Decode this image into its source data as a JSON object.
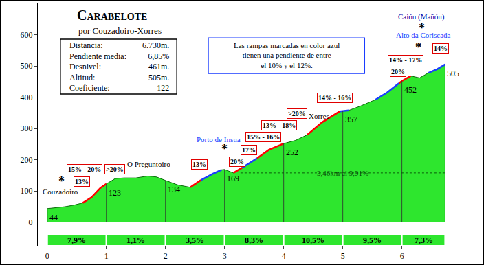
{
  "chart_data": {
    "type": "area",
    "title": "Carabelote",
    "subtitle": "por Couzadoiro-Xorres",
    "color": "#2ee62e",
    "x": [
      0,
      0.15,
      0.3,
      0.45,
      0.6,
      0.75,
      0.9,
      1.0,
      1.15,
      1.3,
      1.5,
      1.7,
      1.85,
      2.0,
      2.2,
      2.42,
      2.6,
      2.8,
      2.95,
      3.0,
      3.15,
      3.3,
      3.55,
      3.75,
      4.0,
      4.2,
      4.4,
      4.65,
      4.95,
      5.1,
      5.3,
      5.55,
      5.75,
      5.95,
      6.0,
      6.15,
      6.3,
      6.45,
      6.6,
      6.73
    ],
    "values": [
      44,
      47,
      50,
      55,
      62,
      80,
      110,
      123,
      140,
      142,
      142,
      148,
      145,
      134,
      120,
      112,
      135,
      155,
      168,
      169,
      158,
      175,
      205,
      232,
      252,
      262,
      280,
      320,
      355,
      358,
      372,
      392,
      415,
      445,
      452,
      468,
      462,
      478,
      490,
      505
    ],
    "xlim": [
      -0.16,
      7.33
    ],
    "ylim": [
      -75,
      700
    ],
    "xticks": [
      0,
      1,
      2,
      3,
      4,
      5,
      6
    ],
    "yticks": [
      0,
      100,
      200,
      300,
      400,
      500,
      600
    ],
    "grid": false,
    "highlights": [
      {
        "color": "#ff0000",
        "ranges": [
          [
            0.6,
            1.0
          ],
          [
            2.42,
            2.6
          ],
          [
            3.15,
            3.3
          ],
          [
            3.55,
            4.0
          ],
          [
            4.4,
            4.95
          ],
          [
            5.95,
            6.15
          ]
        ]
      },
      {
        "color": "#1a3cff",
        "ranges": [
          [
            2.6,
            2.95
          ],
          [
            3.3,
            3.55
          ],
          [
            4.95,
            5.1
          ],
          [
            5.55,
            5.95
          ],
          [
            6.45,
            6.73
          ]
        ]
      }
    ],
    "km_labels": [
      {
        "x": 0,
        "alt": 44
      },
      {
        "x": 1,
        "alt": 123
      },
      {
        "x": 2,
        "alt": 134
      },
      {
        "x": 3,
        "alt": 169
      },
      {
        "x": 4,
        "alt": 252
      },
      {
        "x": 5,
        "alt": 357
      },
      {
        "x": 6,
        "alt": 452
      },
      {
        "x": 6.73,
        "alt": 505
      }
    ],
    "segments": [
      {
        "from": 0,
        "to": 1,
        "label": "7,9%"
      },
      {
        "from": 1,
        "to": 2,
        "label": "1,1%"
      },
      {
        "from": 2,
        "to": 3,
        "label": "3,5%"
      },
      {
        "from": 3,
        "to": 4,
        "label": "8,3%"
      },
      {
        "from": 4,
        "to": 5,
        "label": "10,5%"
      },
      {
        "from": 5,
        "to": 6,
        "label": "9,5%"
      },
      {
        "from": 6,
        "to": 6.73,
        "label": "7,3%"
      }
    ],
    "ramp_labels": [
      {
        "text": "15% - 20%",
        "x": 0.63,
        "y": 169
      },
      {
        "text": "13%",
        "x": 0.58,
        "y": 130
      },
      {
        "text": ">20%",
        "x": 1.14,
        "y": 169
      },
      {
        "text": "13%",
        "x": 2.57,
        "y": 185
      },
      {
        "text": "20%",
        "x": 3.21,
        "y": 193
      },
      {
        "text": "17%",
        "x": 3.41,
        "y": 231
      },
      {
        "text": "15% - 16%",
        "x": 3.66,
        "y": 272
      },
      {
        "text": "13% - 18%",
        "x": 3.92,
        "y": 310
      },
      {
        "text": ">20%",
        "x": 4.22,
        "y": 347
      },
      {
        "text": "14% - 16%",
        "x": 4.86,
        "y": 398
      },
      {
        "text": "20%",
        "x": 5.94,
        "y": 481
      },
      {
        "text": "14% - 17%",
        "x": 6.06,
        "y": 519
      },
      {
        "text": "14%",
        "x": 6.66,
        "y": 556
      }
    ],
    "places": [
      {
        "text": "Couzadoiro",
        "x": 0.22,
        "y": 99,
        "color": "#000000"
      },
      {
        "text": "O Preguntoiro",
        "x": 1.72,
        "y": 187,
        "color": "#000000"
      },
      {
        "text": "Porto de Insua",
        "x": 2.9,
        "y": 266,
        "color": "#1a3cff"
      },
      {
        "text": "Xorres",
        "x": 4.6,
        "y": 341,
        "color": "#000000"
      },
      {
        "text": "Alto da Coriscada",
        "x": 6.37,
        "y": 598,
        "color": "#1a3cff"
      },
      {
        "text": "Caión (Mañón)",
        "x": 6.33,
        "y": 657,
        "color": "#0000aa"
      }
    ],
    "asterisks": [
      {
        "text": "*",
        "x": 0.24,
        "y": 132
      },
      {
        "text": "*",
        "x": 3.0,
        "y": 235
      },
      {
        "text": "*",
        "x": 6.28,
        "y": 560
      },
      {
        "text": "*",
        "x": 6.33,
        "y": 620
      }
    ],
    "span": {
      "text": "3,46km al 9,91%",
      "from": 3.27,
      "to": 6.73,
      "y": 158
    },
    "info": [
      {
        "label": "Distancia:",
        "value": "6.730m."
      },
      {
        "label": "Pendiente media:",
        "value": "6,85%"
      },
      {
        "label": "Desnivel:",
        "value": "461m."
      },
      {
        "label": "Altitud:",
        "value": "505m."
      },
      {
        "label": "Coeficiente:",
        "value": "122"
      }
    ],
    "note": [
      "Las rampas marcadas en color azul",
      "tienen una pendiente de entre",
      "el 10% y el 12%."
    ]
  }
}
